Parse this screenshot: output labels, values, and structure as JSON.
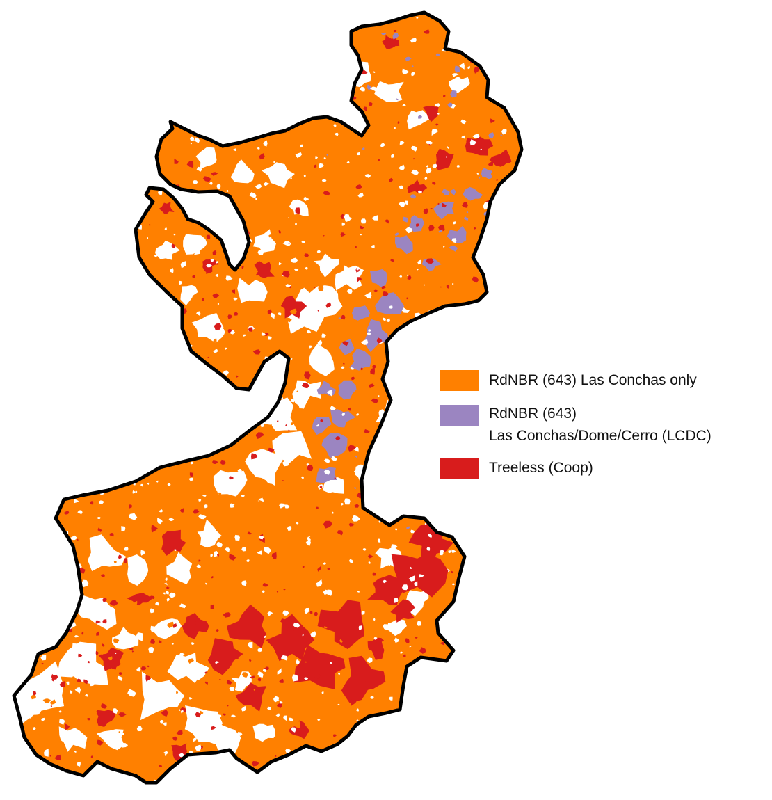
{
  "legend": {
    "items": [
      {
        "label": "RdNBR (643) Las Conchas only",
        "color": "#ff8000"
      },
      {
        "label": "RdNBR (643)",
        "label2": "Las Conchas/Dome/Cerro (LCDC)",
        "color": "#9b85c1"
      },
      {
        "label": "Treeless (Coop)",
        "color": "#d81c1c"
      }
    ]
  },
  "colors": {
    "background": "#ffffff",
    "outline": "#000000",
    "orange": "#ff8000",
    "purple": "#9b85c1",
    "red": "#d81c1c"
  }
}
